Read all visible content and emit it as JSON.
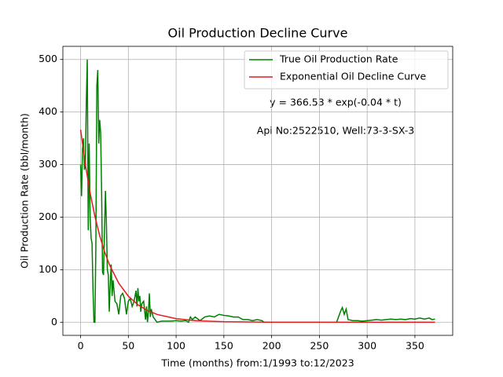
{
  "chart_data": {
    "type": "line",
    "title": "Oil Production Decline Curve",
    "xlabel": "Time (months) from:1/1993 to:12/2023",
    "ylabel": "Oil Production Rate (bbl/month)",
    "annotations": [
      "y = 366.53 * exp(-0.04 * t)",
      "Api No:2522510, Well:73-3-SX-3"
    ],
    "series": [
      {
        "name": "True Oil Production Rate",
        "color": "#008000",
        "x": [
          0,
          1,
          2,
          3,
          4,
          5,
          6,
          7,
          8,
          9,
          10,
          11,
          12,
          13,
          14,
          15,
          16,
          17,
          18,
          19,
          20,
          21,
          22,
          23,
          24,
          25,
          26,
          27,
          28,
          29,
          30,
          31,
          32,
          33,
          34,
          35,
          36,
          38,
          40,
          42,
          44,
          46,
          48,
          50,
          52,
          54,
          56,
          58,
          59,
          60,
          61,
          62,
          63,
          64,
          66,
          68,
          69,
          70,
          71,
          72,
          73,
          74,
          76,
          78,
          80,
          85,
          90,
          95,
          100,
          105,
          110,
          113,
          115,
          117,
          120,
          125,
          130,
          135,
          140,
          145,
          150,
          155,
          160,
          165,
          170,
          175,
          180,
          185,
          190,
          192,
          200,
          220,
          240,
          260,
          268,
          270,
          272,
          274,
          276,
          278,
          280,
          285,
          290,
          295,
          300,
          305,
          310,
          315,
          320,
          325,
          330,
          335,
          340,
          345,
          350,
          355,
          360,
          365,
          368,
          371
        ],
        "values": [
          300,
          240,
          330,
          350,
          290,
          300,
          420,
          500,
          175,
          340,
          200,
          160,
          150,
          60,
          0,
          0,
          150,
          450,
          480,
          340,
          385,
          360,
          250,
          95,
          90,
          170,
          250,
          190,
          100,
          90,
          20,
          70,
          110,
          50,
          80,
          60,
          40,
          35,
          15,
          50,
          55,
          45,
          15,
          40,
          45,
          30,
          40,
          60,
          30,
          65,
          40,
          50,
          20,
          35,
          40,
          5,
          30,
          0,
          20,
          55,
          10,
          25,
          10,
          5,
          0,
          2,
          2,
          2,
          3,
          2,
          3,
          0,
          10,
          5,
          10,
          3,
          10,
          12,
          10,
          15,
          13,
          12,
          10,
          10,
          5,
          5,
          3,
          5,
          3,
          0,
          0,
          0,
          0,
          0,
          0,
          10,
          20,
          28,
          15,
          25,
          5,
          3,
          3,
          2,
          3,
          4,
          5,
          4,
          5,
          6,
          5,
          6,
          5,
          7,
          6,
          8,
          6,
          8,
          5,
          6
        ]
      },
      {
        "name": "Exponential Oil Decline Curve",
        "color": "#e41a1c",
        "x": [
          0,
          5,
          10,
          15,
          20,
          25,
          30,
          40,
          50,
          60,
          70,
          80,
          100,
          120,
          150,
          200,
          250,
          300,
          371
        ],
        "values": [
          366.5,
          300.1,
          245.7,
          201.2,
          164.7,
          134.8,
          110.4,
          74.0,
          49.6,
          33.2,
          22.3,
          14.9,
          6.7,
          3.0,
          0.9,
          0.12,
          0.02,
          0,
          0
        ]
      }
    ],
    "xlim": [
      -18.55,
      389.55
    ],
    "xticks": [
      0,
      50,
      100,
      150,
      200,
      250,
      300,
      350
    ],
    "ylim": [
      -25,
      525
    ],
    "yticks": [
      0,
      100,
      200,
      300,
      400,
      500
    ],
    "grid": true,
    "legend": "upper right"
  }
}
